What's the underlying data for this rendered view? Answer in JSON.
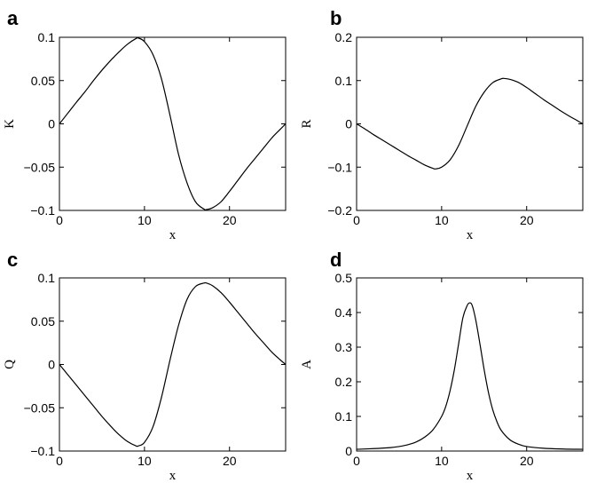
{
  "chart_data": [
    {
      "panel": "a",
      "type": "line",
      "xlabel": "x",
      "ylabel": "K",
      "xlim": [
        0,
        26.6
      ],
      "ylim": [
        -0.1,
        0.1
      ],
      "xticks": [
        "0",
        "10",
        "20"
      ],
      "xtick_values": [
        0,
        10,
        20
      ],
      "yticks": [
        "-0.1",
        "-0.05",
        "0",
        "0.05",
        "0.1"
      ],
      "ytick_values": [
        -0.1,
        -0.05,
        0,
        0.05,
        0.1
      ],
      "series": [
        {
          "x": [
            0,
            1,
            2,
            3,
            4,
            5,
            6,
            7,
            8,
            9,
            9.3,
            10,
            11,
            12,
            13,
            14,
            15,
            16,
            17,
            17.3,
            18,
            19,
            20,
            21,
            22,
            23,
            24,
            25,
            26,
            26.6
          ],
          "y": [
            0,
            0.0125,
            0.025,
            0.037,
            0.05,
            0.062,
            0.073,
            0.083,
            0.092,
            0.0985,
            0.099,
            0.095,
            0.08,
            0.052,
            0.01,
            -0.035,
            -0.068,
            -0.09,
            -0.0985,
            -0.099,
            -0.097,
            -0.09,
            -0.078,
            -0.065,
            -0.052,
            -0.04,
            -0.028,
            -0.016,
            -0.006,
            0
          ]
        }
      ]
    },
    {
      "panel": "b",
      "type": "line",
      "xlabel": "x",
      "ylabel": "R",
      "xlim": [
        0,
        26.6
      ],
      "ylim": [
        -0.2,
        0.2
      ],
      "xticks": [
        "0",
        "10",
        "20"
      ],
      "xtick_values": [
        0,
        10,
        20
      ],
      "yticks": [
        "-0.2",
        "-0.1",
        "0",
        "0.1",
        "0.2"
      ],
      "ytick_values": [
        -0.2,
        -0.1,
        0,
        0.1,
        0.2
      ],
      "series": [
        {
          "x": [
            0,
            1,
            2,
            3,
            4,
            5,
            6,
            7,
            8,
            9,
            9.3,
            10,
            11,
            12,
            13,
            14,
            15,
            16,
            17,
            17.3,
            18,
            19,
            20,
            21,
            22,
            23,
            24,
            25,
            26,
            26.6
          ],
          "y": [
            0,
            -0.012,
            -0.025,
            -0.037,
            -0.049,
            -0.061,
            -0.073,
            -0.084,
            -0.095,
            -0.103,
            -0.104,
            -0.1,
            -0.083,
            -0.05,
            -0.005,
            0.04,
            0.073,
            0.095,
            0.104,
            0.105,
            0.103,
            0.096,
            0.084,
            0.07,
            0.056,
            0.043,
            0.03,
            0.018,
            0.007,
            0
          ]
        }
      ]
    },
    {
      "panel": "c",
      "type": "line",
      "xlabel": "x",
      "ylabel": "Q",
      "xlim": [
        0,
        26.6
      ],
      "ylim": [
        -0.1,
        0.1
      ],
      "xticks": [
        "0",
        "10",
        "20"
      ],
      "xtick_values": [
        0,
        10,
        20
      ],
      "yticks": [
        "-0.1",
        "-0.05",
        "0",
        "0.05",
        "0.1"
      ],
      "ytick_values": [
        -0.1,
        -0.05,
        0,
        0.05,
        0.1
      ],
      "series": [
        {
          "x": [
            0,
            1,
            2,
            3,
            4,
            5,
            6,
            7,
            8,
            9,
            9.3,
            10,
            11,
            12,
            13,
            14,
            15,
            16,
            17,
            17.3,
            18,
            19,
            20,
            21,
            22,
            23,
            24,
            25,
            26,
            26.6
          ],
          "y": [
            0,
            -0.012,
            -0.024,
            -0.036,
            -0.048,
            -0.06,
            -0.071,
            -0.081,
            -0.089,
            -0.094,
            -0.094,
            -0.09,
            -0.072,
            -0.038,
            0.005,
            0.045,
            0.075,
            0.09,
            0.094,
            0.094,
            0.091,
            0.083,
            0.072,
            0.06,
            0.048,
            0.036,
            0.025,
            0.014,
            0.005,
            0
          ]
        }
      ]
    },
    {
      "panel": "d",
      "type": "line",
      "xlabel": "x",
      "ylabel": "A",
      "xlim": [
        0,
        26.6
      ],
      "ylim": [
        0,
        0.5
      ],
      "xticks": [
        "0",
        "10",
        "20"
      ],
      "xtick_values": [
        0,
        10,
        20
      ],
      "yticks": [
        "0",
        "0.1",
        "0.2",
        "0.3",
        "0.4",
        "0.5"
      ],
      "ytick_values": [
        0,
        0.1,
        0.2,
        0.3,
        0.4,
        0.5
      ],
      "series": [
        {
          "x": [
            0,
            2,
            4,
            5,
            6,
            7,
            8,
            9,
            10,
            10.5,
            11,
            11.5,
            12,
            12.5,
            13,
            13.3,
            13.6,
            14,
            14.5,
            15,
            15.5,
            16,
            16.5,
            17,
            18,
            19,
            20,
            22,
            24,
            26.6
          ],
          "y": [
            0.005,
            0.007,
            0.01,
            0.013,
            0.018,
            0.026,
            0.04,
            0.062,
            0.1,
            0.13,
            0.175,
            0.235,
            0.31,
            0.385,
            0.42,
            0.428,
            0.42,
            0.38,
            0.31,
            0.235,
            0.17,
            0.12,
            0.085,
            0.06,
            0.033,
            0.02,
            0.013,
            0.008,
            0.006,
            0.005
          ]
        }
      ]
    }
  ]
}
